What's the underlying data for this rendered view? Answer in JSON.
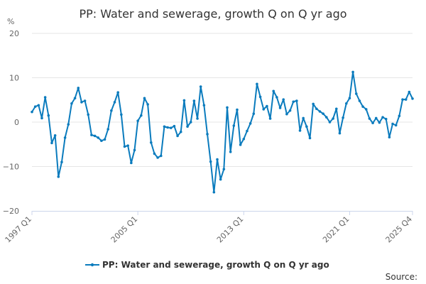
{
  "chart_data": {
    "type": "line",
    "title": "PP: Water and sewerage, growth Q on Q yr ago",
    "ylabel": "%",
    "xlabel": "",
    "ylim": [
      -20,
      20
    ],
    "yticks": [
      -20,
      -10,
      0,
      10,
      20
    ],
    "xtick_labels": [
      "1997 Q1",
      "2005 Q1",
      "2013 Q1",
      "2021 Q1",
      "2025 Q4"
    ],
    "xtick_indices": [
      0,
      32,
      64,
      96,
      115
    ],
    "legend_position": "bottom-center",
    "grid": true,
    "series": [
      {
        "name": "PP: Water and sewerage, growth Q on Q yr ago",
        "color": "#0a7bbd",
        "values": [
          2.3,
          3.5,
          3.8,
          0.9,
          5.6,
          1.5,
          -4.7,
          -3.0,
          -12.3,
          -9.0,
          -3.5,
          -0.5,
          4.2,
          5.4,
          7.7,
          4.5,
          4.8,
          1.7,
          -2.9,
          -3.1,
          -3.5,
          -4.2,
          -3.9,
          -1.6,
          2.6,
          4.5,
          6.7,
          1.7,
          -5.5,
          -5.3,
          -9.2,
          -6.3,
          0.3,
          1.5,
          5.4,
          4.0,
          -4.6,
          -7.1,
          -8.0,
          -7.6,
          -1.0,
          -1.2,
          -1.3,
          -0.9,
          -3.1,
          -2.2,
          4.9,
          -1.0,
          0.0,
          4.8,
          0.8,
          8.0,
          3.8,
          -2.7,
          -8.9,
          -15.8,
          -8.4,
          -12.9,
          -10.6,
          3.3,
          -6.7,
          -0.8,
          2.8,
          -5.1,
          -3.8,
          -2.0,
          -0.3,
          1.9,
          8.6,
          5.7,
          2.9,
          3.6,
          0.8,
          7.0,
          5.6,
          3.2,
          5.1,
          1.8,
          2.6,
          4.6,
          4.8,
          -1.9,
          0.9,
          -1.0,
          -3.6,
          4.1,
          3.0,
          2.4,
          1.9,
          1.1,
          0.0,
          0.8,
          3.0,
          -2.5,
          1.0,
          4.2,
          5.4,
          11.3,
          6.4,
          4.8,
          3.5,
          2.9,
          0.8,
          -0.2,
          0.9,
          -0.1,
          1.1,
          0.7,
          -3.4,
          -0.4,
          -0.7,
          1.4,
          5.1,
          5.1,
          6.8,
          5.3
        ]
      }
    ],
    "source_label": "Source:"
  }
}
